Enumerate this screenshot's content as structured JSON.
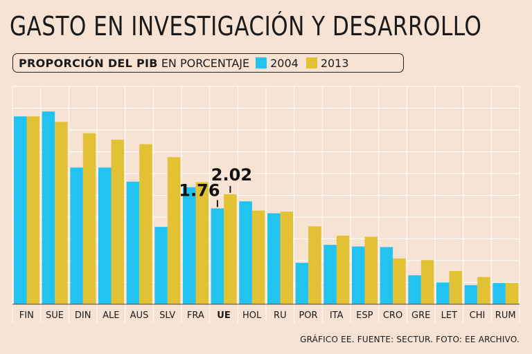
{
  "title": "GASTO EN INVESTIGACIÓN Y DESARROLLO",
  "legend": {
    "subtitle_strong": "PROPORCIÓN DEL PIB",
    "subtitle_light": "EN PORCENTAJE",
    "series_2004": "2004",
    "series_2013": "2013"
  },
  "footer": "GRÁFICO EE. FUENTE: SECTUR. FOTO: EE ARCHIVO.",
  "colors": {
    "c2004": "#22c3f0",
    "c2013": "#e2c135",
    "bg": "#f6e3d3",
    "grid": "#ffffff"
  },
  "chart_data": {
    "type": "bar",
    "title": "GASTO EN INVESTIGACIÓN Y DESARROLLO",
    "subtitle": "PROPORCIÓN DEL PIB EN PORCENTAJE",
    "categories": [
      "FIN",
      "SUE",
      "DIN",
      "ALE",
      "AUS",
      "SLV",
      "FRA",
      "UE",
      "HOL",
      "RU",
      "POR",
      "ITA",
      "ESP",
      "CRO",
      "GRE",
      "LET",
      "CHI",
      "RUM"
    ],
    "highlight_category": "UE",
    "series": [
      {
        "name": "2004",
        "values": [
          3.45,
          3.54,
          2.51,
          2.51,
          2.25,
          1.42,
          2.15,
          1.76,
          1.89,
          1.67,
          0.76,
          1.09,
          1.06,
          1.05,
          0.53,
          0.4,
          0.35,
          0.39
        ]
      },
      {
        "name": "2013",
        "values": [
          3.45,
          3.35,
          3.14,
          3.02,
          2.94,
          2.7,
          2.24,
          2.02,
          1.72,
          1.7,
          1.43,
          1.26,
          1.24,
          0.84,
          0.81,
          0.61,
          0.5,
          0.39
        ]
      }
    ],
    "annotations": [
      {
        "category": "UE",
        "series": "2004",
        "text": "1.76"
      },
      {
        "category": "UE",
        "series": "2013",
        "text": "2.02"
      }
    ],
    "ylim": [
      0,
      4
    ],
    "grid": true,
    "xlabel": "",
    "ylabel": ""
  }
}
